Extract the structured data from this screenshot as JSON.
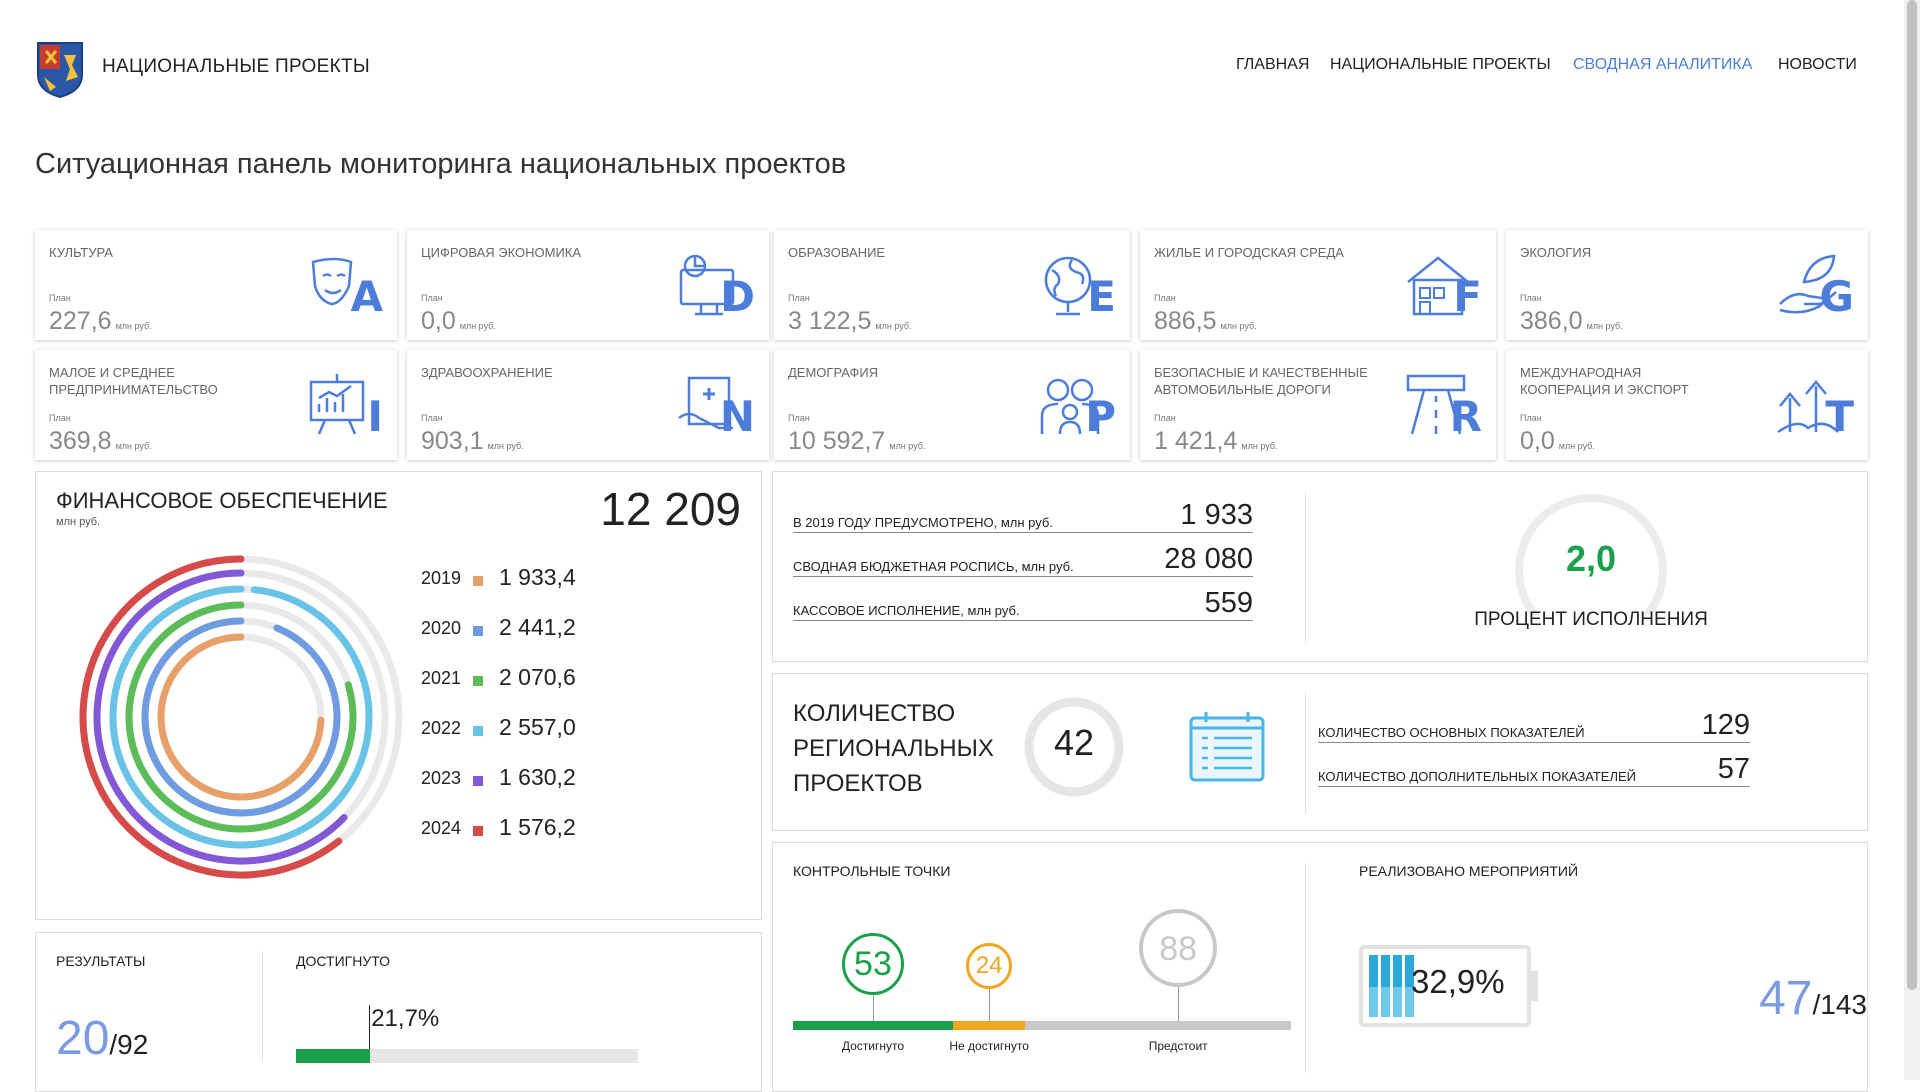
{
  "header": {
    "brand": "НАЦИОНАЛЬНЫЕ ПРОЕКТЫ",
    "nav": [
      {
        "label": "ГЛАВНАЯ",
        "active": false
      },
      {
        "label": "НАЦИОНАЛЬНЫЕ ПРОЕКТЫ",
        "active": false
      },
      {
        "label": "СВОДНАЯ АНАЛИТИКА",
        "active": true
      },
      {
        "label": "НОВОСТИ",
        "active": false
      }
    ]
  },
  "page_title": "Ситуационная панель мониторинга национальных проектов",
  "cards": [
    {
      "name": "КУЛЬТУРА",
      "plan_label": "План",
      "plan_value": "227,6",
      "plan_unit": "млн руб.",
      "letter": "A",
      "icon": "theater-masks-icon"
    },
    {
      "name": "ЦИФРОВАЯ ЭКОНОМИКА",
      "plan_label": "План",
      "plan_value": "0,0",
      "plan_unit": "млн руб.",
      "letter": "D",
      "icon": "computer-chart-icon"
    },
    {
      "name": "ОБРАЗОВАНИЕ",
      "plan_label": "План",
      "plan_value": "3 122,5",
      "plan_unit": "млн руб.",
      "letter": "E",
      "icon": "globe-icon"
    },
    {
      "name": "ЖИЛЬЕ И ГОРОДСКАЯ СРЕДА",
      "plan_label": "План",
      "plan_value": "886,5",
      "plan_unit": "млн руб.",
      "letter": "F",
      "icon": "house-icon"
    },
    {
      "name": "ЭКОЛОГИЯ",
      "plan_label": "План",
      "plan_value": "386,0",
      "plan_unit": "млн руб.",
      "letter": "G",
      "icon": "hand-leaf-icon"
    },
    {
      "name": "МАЛОЕ И СРЕДНЕЕ ПРЕДПРИНИМАТЕЛЬСТВО",
      "plan_label": "План",
      "plan_value": "369,8",
      "plan_unit": "млн руб.",
      "letter": "I",
      "icon": "presentation-board-icon"
    },
    {
      "name": "ЗДРАВООХРАНЕНИЕ",
      "plan_label": "План",
      "plan_value": "903,1",
      "plan_unit": "млн руб.",
      "letter": "N",
      "icon": "medical-chart-icon"
    },
    {
      "name": "ДЕМОГРАФИЯ",
      "plan_label": "План",
      "plan_value": "10 592,7",
      "plan_unit": "млн руб.",
      "letter": "P",
      "icon": "family-icon"
    },
    {
      "name": "БЕЗОПАСНЫЕ И КАЧЕСТВЕННЫЕ АВТОМОБИЛЬНЫЕ ДОРОГИ",
      "plan_label": "План",
      "plan_value": "1 421,4",
      "plan_unit": "млн руб.",
      "letter": "R",
      "icon": "road-icon"
    },
    {
      "name": "МЕЖДУНАРОДНАЯ КООПЕРАЦИЯ И ЭКСПОРТ",
      "plan_label": "План",
      "plan_value": "0,0",
      "plan_unit": "млн руб.",
      "letter": "T",
      "icon": "export-arrows-icon"
    }
  ],
  "finance": {
    "title": "ФИНАНСОВОЕ ОБЕСПЕЧЕНИЕ",
    "unit": "млн руб.",
    "total": "12 209"
  },
  "chart_data": {
    "type": "radial-bar",
    "categories": [
      "2019",
      "2020",
      "2021",
      "2022",
      "2023",
      "2024"
    ],
    "values": [
      1933.4,
      2441.2,
      2070.6,
      2557.0,
      1630.2,
      1576.2
    ],
    "labels": [
      "1 933,4",
      "2 441,2",
      "2 070,6",
      "2 557,0",
      "1 630,2",
      "1 576,2"
    ],
    "colors": [
      "#e8a06a",
      "#6f9be0",
      "#5cbd58",
      "#68c3e6",
      "#8358d6",
      "#d64a4a"
    ]
  },
  "budget": {
    "rows": [
      {
        "label": "В 2019 ГОДУ ПРЕДУСМОТРЕНО, млн руб.",
        "value": "1 933"
      },
      {
        "label": "СВОДНАЯ БЮДЖЕТНАЯ РОСПИСЬ, млн руб.",
        "value": "28 080"
      },
      {
        "label": "КАССОВОЕ ИСПОЛНЕНИЕ, млн руб.",
        "value": "559"
      }
    ],
    "percent_value": "2,0",
    "percent_fraction": 0.02,
    "percent_label": "ПРОЦЕНТ ИСПОЛНЕНИЯ"
  },
  "regional": {
    "title": "КОЛИЧЕСТВО РЕГИОНАЛЬНЫХ ПРОЕКТОВ",
    "count": "42",
    "rows": [
      {
        "label": "КОЛИЧЕСТВО ОСНОВНЫХ ПОКАЗАТЕЛЕЙ",
        "value": "129"
      },
      {
        "label": "КОЛИЧЕСТВО ДОПОЛНИТЕЛЬНЫХ ПОКАЗАТЕЛЕЙ",
        "value": "57"
      }
    ]
  },
  "results": {
    "title": "РЕЗУЛЬТАТЫ",
    "achieved_count": "20",
    "total": "/92",
    "achieved_title": "ДОСТИГНУТО",
    "achieved_percent": "21,7%",
    "achieved_fraction": 0.217
  },
  "control_points": {
    "title": "КОНТРОЛЬНЫЕ ТОЧКИ",
    "items": [
      {
        "value": "53",
        "label": "Достигнуто",
        "color": "#1aa04a"
      },
      {
        "value": "24",
        "label": "Не достигнуто",
        "color": "#f0a820"
      },
      {
        "value": "88",
        "label": "Предстоит",
        "color": "#c8c8c8"
      }
    ]
  },
  "events": {
    "title": "РЕАЛИЗОВАНО МЕРОПРИЯТИЙ",
    "percent": "32,9%",
    "fraction": 0.329,
    "done": "47",
    "total": "/143"
  }
}
